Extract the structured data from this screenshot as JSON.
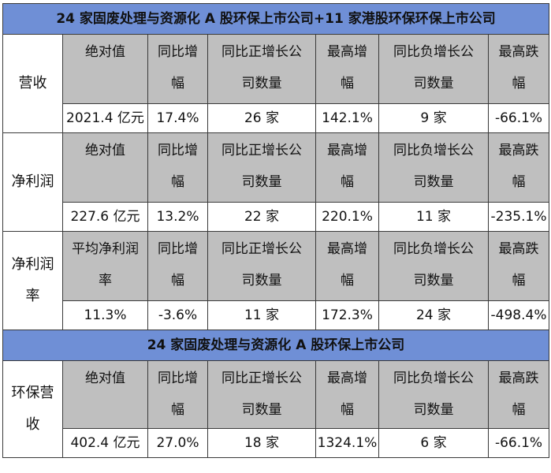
{
  "sections": [
    {
      "title": "24 家固废处理与资源化 A 股环保上市公司+11 家港股环保环保上市公司",
      "groups": [
        {
          "row_label": [
            "营收"
          ],
          "headers": [
            [
              "绝对值"
            ],
            [
              "同比增",
              "幅"
            ],
            [
              "同比正增长公",
              "司数量"
            ],
            [
              "最高增",
              "幅"
            ],
            [
              "同比负增长公",
              "司数量"
            ],
            [
              "最高跌",
              "幅"
            ]
          ],
          "values": [
            "2021.4 亿元",
            "17.4%",
            "26 家",
            "142.1%",
            "9 家",
            "-66.1%"
          ]
        },
        {
          "row_label": [
            "净利润"
          ],
          "headers": [
            [
              "绝对值"
            ],
            [
              "同比增",
              "幅"
            ],
            [
              "同比正增长公",
              "司数量"
            ],
            [
              "最高增",
              "幅"
            ],
            [
              "同比负增长公",
              "司数量"
            ],
            [
              "最高跌",
              "幅"
            ]
          ],
          "values": [
            "227.6 亿元",
            "13.2%",
            "22 家",
            "220.1%",
            "11 家",
            "-235.1%"
          ]
        },
        {
          "row_label": [
            "净利润",
            "率"
          ],
          "headers": [
            [
              "平均净利润",
              "率"
            ],
            [
              "同比增",
              "幅"
            ],
            [
              "同比正增长公",
              "司数量"
            ],
            [
              "最高增",
              "幅"
            ],
            [
              "同比负增长公",
              "司数量"
            ],
            [
              "最高跌",
              "幅"
            ]
          ],
          "values": [
            "11.3%",
            "-3.6%",
            "11 家",
            "172.3%",
            "24 家",
            "-498.4%"
          ]
        }
      ]
    },
    {
      "title": "24 家固废处理与资源化 A 股环保上市公司",
      "groups": [
        {
          "row_label": [
            "环保营",
            "收"
          ],
          "headers": [
            [
              "绝对值"
            ],
            [
              "同比增",
              "幅"
            ],
            [
              "同比正增长公",
              "司数量"
            ],
            [
              "最高增",
              "幅"
            ],
            [
              "同比负增长公",
              "司数量"
            ],
            [
              "最高跌",
              "幅"
            ]
          ],
          "values": [
            "402.4 亿元",
            "27.0%",
            "18 家",
            "1324.1%",
            "6 家",
            "-66.1%"
          ]
        }
      ]
    }
  ]
}
